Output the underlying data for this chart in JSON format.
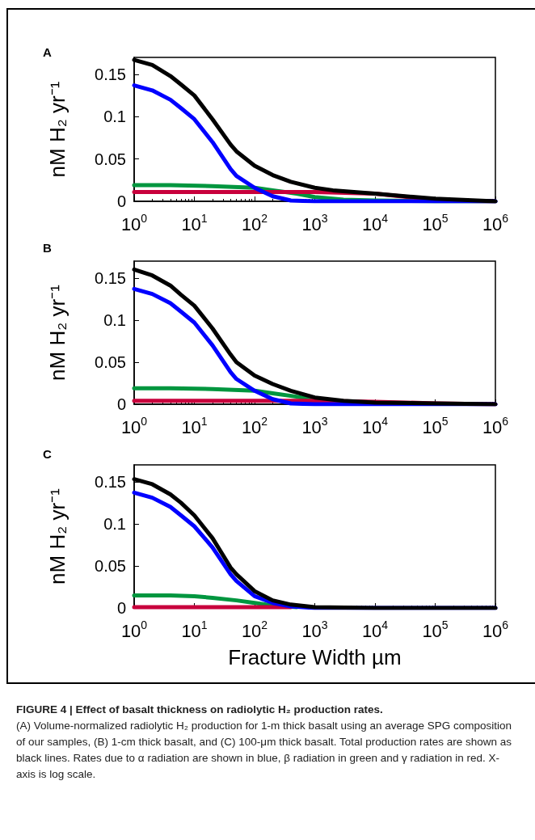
{
  "chart_data": [
    {
      "type": "line",
      "title": "A",
      "ylabel": "nM H₂ yr⁻¹",
      "log": "x",
      "xlim": [
        1,
        1000000
      ],
      "ylim": [
        0,
        0.17
      ],
      "xticks": [
        {
          "value": 1,
          "label": "10$^{0}$"
        },
        {
          "value": 10,
          "label": "10$^{1}$"
        },
        {
          "value": 100,
          "label": "10$^{2}$"
        },
        {
          "value": 1000,
          "label": "10$^{3}$"
        },
        {
          "value": 10000,
          "label": "10$^{4}$"
        },
        {
          "value": 100000,
          "label": "10$^{5}$"
        },
        {
          "value": 1000000,
          "label": "10$^{6}$"
        }
      ],
      "yticks": [
        0,
        0.05,
        0.1,
        0.15
      ],
      "grid": false,
      "marker": "none",
      "line_style": "solid",
      "series": [
        {
          "color": "#00963f",
          "x": [
            1,
            4,
            20,
            100,
            200,
            500,
            1000,
            3000,
            10000,
            100000,
            1000000
          ],
          "values": [
            0.019,
            0.019,
            0.018,
            0.016,
            0.013,
            0.009,
            0.005,
            0.002,
            0.001,
            0,
            0
          ]
        },
        {
          "color": "#c8003c",
          "x": [
            1,
            10,
            100,
            1000,
            10000,
            50000,
            100000,
            1000000
          ],
          "values": [
            0.011,
            0.011,
            0.011,
            0.011,
            0.009,
            0.004,
            0.001,
            0
          ]
        },
        {
          "color": "#0000ff",
          "x": [
            1,
            2,
            4,
            6,
            10,
            20,
            40,
            50,
            100,
            200,
            400,
            1000,
            1000000
          ],
          "values": [
            0.137,
            0.131,
            0.12,
            0.11,
            0.097,
            0.07,
            0.038,
            0.03,
            0.016,
            0.006,
            0.001,
            0,
            0
          ]
        },
        {
          "color": "#000000",
          "x": [
            1,
            2,
            4,
            6,
            10,
            20,
            40,
            50,
            100,
            200,
            400,
            1000,
            2000,
            10000,
            100000,
            1000000
          ],
          "values": [
            0.167,
            0.161,
            0.148,
            0.138,
            0.125,
            0.097,
            0.067,
            0.059,
            0.042,
            0.031,
            0.023,
            0.016,
            0.013,
            0.009,
            0.003,
            0
          ]
        }
      ]
    },
    {
      "type": "line",
      "title": "B",
      "ylabel": "nM H₂ yr⁻¹",
      "log": "x",
      "xlim": [
        1,
        1000000
      ],
      "ylim": [
        0,
        0.17
      ],
      "xticks": [
        {
          "value": 1,
          "label": "10$^{0}$"
        },
        {
          "value": 10,
          "label": "10$^{1}$"
        },
        {
          "value": 100,
          "label": "10$^{2}$"
        },
        {
          "value": 1000,
          "label": "10$^{3}$"
        },
        {
          "value": 10000,
          "label": "10$^{4}$"
        },
        {
          "value": 100000,
          "label": "10$^{5}$"
        },
        {
          "value": 1000000,
          "label": "10$^{6}$"
        }
      ],
      "yticks": [
        0,
        0.05,
        0.1,
        0.15
      ],
      "grid": false,
      "marker": "none",
      "line_style": "solid",
      "series": [
        {
          "color": "#00963f",
          "x": [
            1,
            4,
            20,
            100,
            200,
            500,
            1000,
            3000
          ],
          "values": [
            0.019,
            0.019,
            0.018,
            0.016,
            0.013,
            0.009,
            0.005,
            0.002
          ]
        },
        {
          "color": "#c8003c",
          "x": [
            1,
            10,
            100,
            1000,
            10000,
            100000,
            1000000
          ],
          "values": [
            0.004,
            0.004,
            0.004,
            0.004,
            0.003,
            0.001,
            0
          ]
        },
        {
          "color": "#0000ff",
          "x": [
            1,
            2,
            4,
            6,
            10,
            20,
            40,
            50,
            100,
            200,
            400,
            1000,
            1000000
          ],
          "values": [
            0.137,
            0.131,
            0.12,
            0.11,
            0.097,
            0.07,
            0.038,
            0.03,
            0.016,
            0.006,
            0.001,
            0,
            0
          ]
        },
        {
          "color": "#000000",
          "x": [
            1,
            2,
            4,
            6,
            10,
            20,
            40,
            50,
            100,
            200,
            400,
            1000,
            3000,
            10000,
            100000,
            1000000
          ],
          "values": [
            0.16,
            0.153,
            0.141,
            0.13,
            0.117,
            0.09,
            0.059,
            0.05,
            0.034,
            0.024,
            0.016,
            0.008,
            0.004,
            0.002,
            0.001,
            0
          ]
        }
      ]
    },
    {
      "type": "line",
      "title": "C",
      "ylabel": "nM H₂ yr⁻¹",
      "xlabel": "Fracture Width µm",
      "log": "x",
      "xlim": [
        1,
        1000000
      ],
      "ylim": [
        0,
        0.17
      ],
      "xticks": [
        {
          "value": 1,
          "label": "10$^{0}$"
        },
        {
          "value": 10,
          "label": "10$^{1}$"
        },
        {
          "value": 100,
          "label": "10$^{2}$"
        },
        {
          "value": 1000,
          "label": "10$^{3}$"
        },
        {
          "value": 10000,
          "label": "10$^{4}$"
        },
        {
          "value": 100000,
          "label": "10$^{5}$"
        },
        {
          "value": 1000000,
          "label": "10$^{6}$"
        }
      ],
      "yticks": [
        0,
        0.05,
        0.1,
        0.15
      ],
      "grid": false,
      "marker": "none",
      "line_style": "solid",
      "series": [
        {
          "color": "#00963f",
          "x": [
            1,
            4,
            10,
            20,
            50,
            100,
            200,
            500
          ],
          "values": [
            0.015,
            0.015,
            0.014,
            0.012,
            0.009,
            0.006,
            0.003,
            0.001
          ]
        },
        {
          "color": "#c8003c",
          "x": [
            1,
            100,
            400
          ],
          "values": [
            0.001,
            0.001,
            0.001
          ]
        },
        {
          "color": "#0000ff",
          "x": [
            1,
            2,
            4,
            6,
            10,
            20,
            40,
            50,
            100,
            200,
            400,
            1000,
            1000000
          ],
          "values": [
            0.137,
            0.131,
            0.12,
            0.11,
            0.097,
            0.072,
            0.04,
            0.032,
            0.014,
            0.006,
            0.002,
            0,
            0
          ]
        },
        {
          "color": "#000000",
          "x": [
            1,
            2,
            4,
            6,
            10,
            20,
            40,
            50,
            100,
            200,
            400,
            1000,
            10000,
            1000000
          ],
          "values": [
            0.153,
            0.147,
            0.135,
            0.125,
            0.11,
            0.083,
            0.048,
            0.04,
            0.02,
            0.009,
            0.004,
            0.001,
            0,
            0
          ]
        }
      ],
      "annotations": [
        "FIGURE 4 | Effect of basalt thickness on radiolytic H₂ production rates.",
        "(A) Volume-normalized radiolytic H₂ production for 1-m thick basalt using an average SPG composition of our samples, (B) 1-cm thick basalt, and (C) 100-μm thick basalt. Total production rates are shown as black lines. Rates due to α radiation are shown in blue, β radiation in green and γ radiation in red. X-axis is log scale."
      ]
    }
  ]
}
